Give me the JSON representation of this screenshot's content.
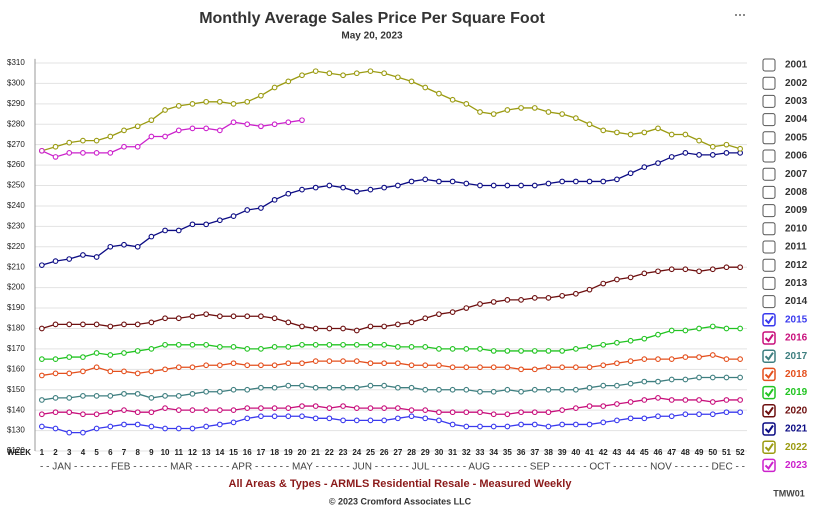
{
  "chart_data": {
    "type": "line",
    "title": "Monthly Average Sales Price Per Square Foot",
    "subtitle": "May 20, 2023",
    "x_axis_label": "WEEK",
    "month_labels": "- - JAN - - - - - - FEB - - - - - - MAR - - - - - - APR - - - - - - MAY - - - - - - JUN - - - - - - JUL - - - - - - AUG - - - - - - SEP - - - - - - OCT - - - - - - NOV - - - - - - DEC - -",
    "footer": "All Areas & Types - ARMLS Residential Resale - Measured Weekly",
    "copyright": "© 2023 Cromford Associates LLC",
    "code": "TMW01",
    "grid": true,
    "xlim": [
      0.5,
      52.5
    ],
    "ylim": [
      120,
      312
    ],
    "yticks": [
      {
        "value": 120,
        "label": "$120"
      },
      {
        "value": 130,
        "label": "$130"
      },
      {
        "value": 140,
        "label": "$140"
      },
      {
        "value": 150,
        "label": "$150"
      },
      {
        "value": 160,
        "label": "$160"
      },
      {
        "value": 170,
        "label": "$170"
      },
      {
        "value": 180,
        "label": "$180"
      },
      {
        "value": 190,
        "label": "$190"
      },
      {
        "value": 200,
        "label": "$200"
      },
      {
        "value": 210,
        "label": "$210"
      },
      {
        "value": 220,
        "label": "$220"
      },
      {
        "value": 230,
        "label": "$230"
      },
      {
        "value": 240,
        "label": "$240"
      },
      {
        "value": 250,
        "label": "$250"
      },
      {
        "value": 260,
        "label": "$260"
      },
      {
        "value": 270,
        "label": "$270"
      },
      {
        "value": 280,
        "label": "$280"
      },
      {
        "value": 290,
        "label": "$290"
      },
      {
        "value": 300,
        "label": "$300"
      },
      {
        "value": 310,
        "label": "$310"
      }
    ],
    "xticks": [
      1,
      2,
      3,
      4,
      5,
      6,
      7,
      8,
      9,
      10,
      11,
      12,
      13,
      14,
      15,
      16,
      17,
      18,
      19,
      20,
      21,
      22,
      23,
      24,
      25,
      26,
      27,
      28,
      29,
      30,
      31,
      32,
      33,
      34,
      35,
      36,
      37,
      38,
      39,
      40,
      41,
      42,
      43,
      44,
      45,
      46,
      47,
      48,
      49,
      50,
      51,
      52
    ],
    "x": [
      1,
      2,
      3,
      4,
      5,
      6,
      7,
      8,
      9,
      10,
      11,
      12,
      13,
      14,
      15,
      16,
      17,
      18,
      19,
      20,
      21,
      22,
      23,
      24,
      25,
      26,
      27,
      28,
      29,
      30,
      31,
      32,
      33,
      34,
      35,
      36,
      37,
      38,
      39,
      40,
      41,
      42,
      43,
      44,
      45,
      46,
      47,
      48,
      49,
      50,
      51,
      52
    ],
    "other_years": [
      "2001",
      "2002",
      "2003",
      "2004",
      "2005",
      "2006",
      "2007",
      "2008",
      "2009",
      "2010",
      "2011",
      "2012",
      "2013",
      "2014"
    ],
    "series": [
      {
        "name": "2015",
        "color": "#3a3aee",
        "values": [
          132,
          131,
          129,
          129,
          131,
          132,
          133,
          133,
          132,
          131,
          131,
          131,
          132,
          133,
          134,
          136,
          137,
          137,
          137,
          137,
          136,
          136,
          135,
          135,
          135,
          135,
          136,
          137,
          136,
          135,
          133,
          132,
          132,
          132,
          132,
          133,
          133,
          132,
          133,
          133,
          133,
          134,
          135,
          136,
          136,
          137,
          137,
          138,
          138,
          138,
          139,
          139
        ]
      },
      {
        "name": "2016",
        "color": "#c8107c",
        "values": [
          138,
          139,
          139,
          138,
          138,
          139,
          140,
          139,
          139,
          141,
          140,
          140,
          140,
          140,
          140,
          141,
          141,
          141,
          141,
          142,
          142,
          141,
          142,
          141,
          141,
          141,
          141,
          140,
          140,
          139,
          139,
          139,
          139,
          138,
          138,
          139,
          139,
          139,
          140,
          141,
          142,
          142,
          143,
          144,
          145,
          146,
          145,
          145,
          145,
          144,
          145,
          145
        ]
      },
      {
        "name": "2017",
        "color": "#3f7f80",
        "values": [
          145,
          146,
          146,
          147,
          147,
          147,
          148,
          148,
          146,
          147,
          147,
          148,
          149,
          149,
          150,
          150,
          151,
          151,
          152,
          152,
          151,
          151,
          151,
          151,
          152,
          152,
          151,
          151,
          150,
          150,
          150,
          150,
          149,
          149,
          150,
          149,
          150,
          150,
          150,
          150,
          151,
          152,
          152,
          153,
          154,
          154,
          155,
          155,
          156,
          156,
          156,
          156
        ]
      },
      {
        "name": "2018",
        "color": "#e4501e",
        "values": [
          157,
          158,
          158,
          159,
          161,
          159,
          159,
          158,
          159,
          160,
          161,
          161,
          162,
          162,
          163,
          162,
          162,
          162,
          163,
          163,
          164,
          164,
          164,
          164,
          163,
          163,
          163,
          162,
          162,
          162,
          161,
          161,
          161,
          161,
          161,
          160,
          160,
          161,
          161,
          161,
          161,
          162,
          163,
          164,
          165,
          165,
          165,
          166,
          166,
          167,
          165,
          165
        ]
      },
      {
        "name": "2019",
        "color": "#22c422",
        "values": [
          165,
          165,
          166,
          166,
          168,
          167,
          168,
          169,
          170,
          172,
          172,
          172,
          172,
          171,
          171,
          170,
          170,
          171,
          171,
          172,
          172,
          172,
          172,
          172,
          172,
          172,
          171,
          171,
          171,
          170,
          170,
          170,
          170,
          169,
          169,
          169,
          169,
          169,
          169,
          170,
          171,
          172,
          173,
          174,
          175,
          177,
          179,
          179,
          180,
          181,
          180,
          180
        ]
      },
      {
        "name": "2020",
        "color": "#6e1010",
        "values": [
          180,
          182,
          182,
          182,
          182,
          181,
          182,
          182,
          183,
          185,
          185,
          186,
          187,
          186,
          186,
          186,
          186,
          185,
          183,
          181,
          180,
          180,
          180,
          179,
          181,
          181,
          182,
          183,
          185,
          187,
          188,
          190,
          192,
          193,
          194,
          194,
          195,
          195,
          196,
          197,
          199,
          202,
          204,
          205,
          207,
          208,
          209,
          209,
          208,
          209,
          210,
          210
        ]
      },
      {
        "name": "2021",
        "color": "#0c0c84",
        "values": [
          211,
          213,
          214,
          216,
          215,
          220,
          221,
          220,
          225,
          228,
          228,
          231,
          231,
          233,
          235,
          238,
          239,
          243,
          246,
          248,
          249,
          250,
          249,
          247,
          248,
          249,
          250,
          252,
          253,
          252,
          252,
          251,
          250,
          250,
          250,
          250,
          250,
          251,
          252,
          252,
          252,
          252,
          253,
          256,
          259,
          261,
          264,
          266,
          265,
          265,
          266,
          266
        ]
      },
      {
        "name": "2022",
        "color": "#9b9b12",
        "values": [
          267,
          269,
          271,
          272,
          272,
          274,
          277,
          279,
          282,
          287,
          289,
          290,
          291,
          291,
          290,
          291,
          294,
          298,
          301,
          304,
          306,
          305,
          304,
          305,
          306,
          305,
          303,
          301,
          298,
          295,
          292,
          290,
          286,
          285,
          287,
          288,
          288,
          286,
          285,
          283,
          280,
          277,
          276,
          275,
          276,
          278,
          275,
          275,
          272,
          269,
          270,
          268
        ]
      },
      {
        "name": "2023",
        "color": "#cc22cc",
        "values": [
          267,
          264,
          266,
          266,
          266,
          266,
          269,
          269,
          274,
          274,
          277,
          278,
          278,
          277,
          281,
          280,
          279,
          280,
          281,
          282,
          null,
          null,
          null,
          null,
          null,
          null,
          null,
          null,
          null,
          null,
          null,
          null,
          null,
          null,
          null,
          null,
          null,
          null,
          null,
          null,
          null,
          null,
          null,
          null,
          null,
          null,
          null,
          null,
          null,
          null,
          null,
          null
        ]
      }
    ]
  }
}
